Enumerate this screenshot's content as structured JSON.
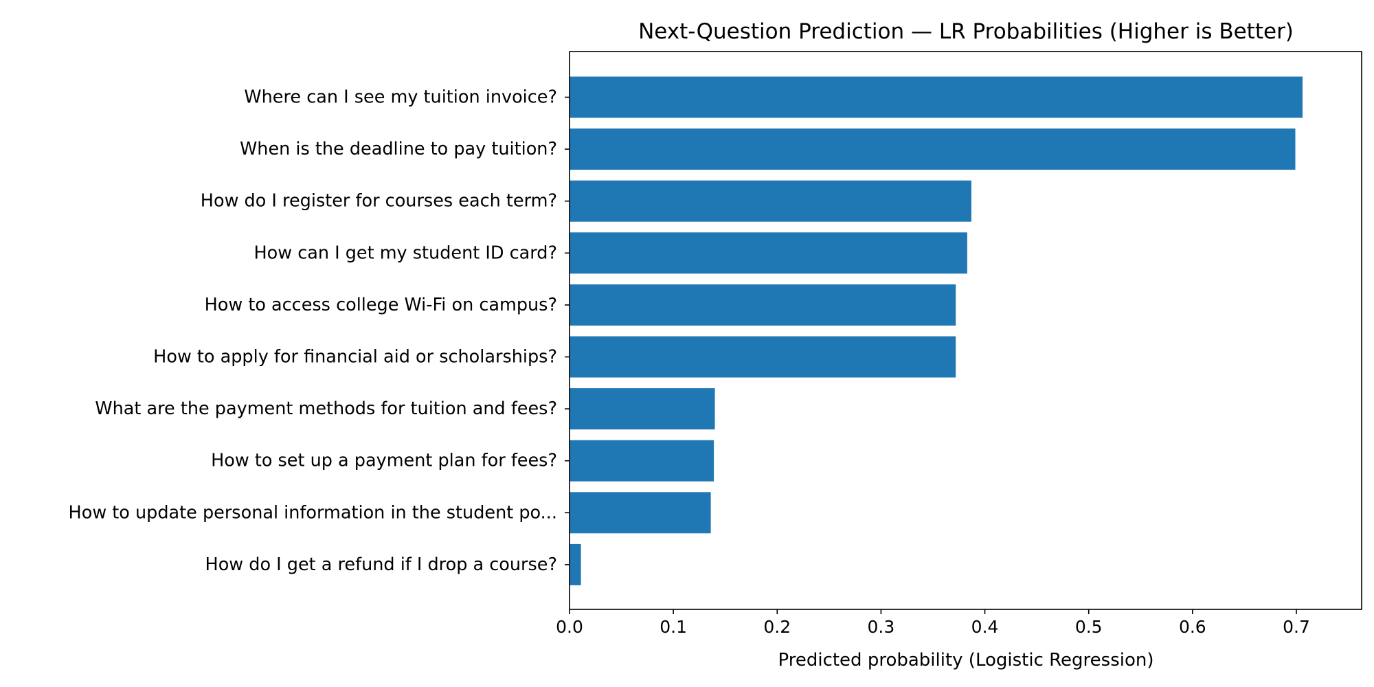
{
  "chart_data": {
    "type": "bar",
    "orientation": "horizontal",
    "title": "Next-Question Prediction — LR Probabilities (Higher is Better)",
    "xlabel": "Predicted probability (Logistic Regression)",
    "ylabel": "",
    "xlim": [
      0,
      0.74
    ],
    "xticks": [
      0.0,
      0.1,
      0.2,
      0.3,
      0.4,
      0.5,
      0.6,
      0.7
    ],
    "xtick_labels": [
      "0.0",
      "0.1",
      "0.2",
      "0.3",
      "0.4",
      "0.5",
      "0.6",
      "0.7"
    ],
    "grid": false,
    "bar_color": "#1f77b4",
    "categories": [
      "Where can I see my tuition invoice?",
      "When is the deadline to pay tuition?",
      "How do I register for courses each term?",
      "How can I get my student ID card?",
      "How to access college Wi-Fi on campus?",
      "How to apply for financial aid or scholarships?",
      "What are the payment methods for tuition and fees?",
      "How to set up a payment plan for fees?",
      "How to update personal information in the student po...",
      "How do I get a refund if I drop a course?"
    ],
    "values": [
      0.706,
      0.699,
      0.387,
      0.383,
      0.372,
      0.372,
      0.14,
      0.139,
      0.136,
      0.011
    ]
  }
}
